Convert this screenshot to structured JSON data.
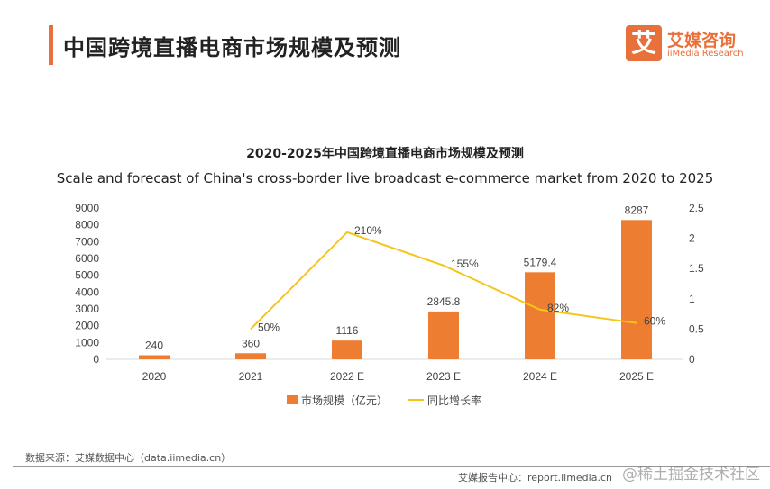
{
  "header": {
    "title": "中国跨境直播电商市场规模及预测",
    "logo_mark": "艾",
    "logo_cn": "艾媒咨询",
    "logo_en": "iiMedia Research"
  },
  "colors": {
    "accent": "#e8703a",
    "bar": "#ed7d31",
    "line": "#f5c518"
  },
  "chart_data": {
    "type": "bar+line",
    "title": "2020-2025年中国跨境直播电商市场规模及预测",
    "subtitle": "Scale and forecast of China's cross-border live broadcast e-commerce market from 2020 to 2025",
    "categories": [
      "2020",
      "2021",
      "2022 E",
      "2023 E",
      "2024 E",
      "2025 E"
    ],
    "series": [
      {
        "name": "市场规模（亿元）",
        "type": "bar",
        "axis": "left",
        "values": [
          240,
          360,
          1116,
          2845.8,
          5179.4,
          8287
        ],
        "labels": [
          "240",
          "360",
          "1116",
          "2845.8",
          "5179.4",
          "8287"
        ]
      },
      {
        "name": "同比增长率",
        "type": "line",
        "axis": "right",
        "values": [
          null,
          0.5,
          2.1,
          1.55,
          0.82,
          0.6
        ],
        "labels": [
          "",
          "50%",
          "210%",
          "155%",
          "82%",
          "60%"
        ]
      }
    ],
    "y_left": {
      "min": 0,
      "max": 9000,
      "ticks": [
        "0",
        "1000",
        "2000",
        "3000",
        "4000",
        "5000",
        "6000",
        "7000",
        "8000",
        "9000"
      ]
    },
    "y_right": {
      "min": 0,
      "max": 2.5,
      "ticks": [
        "0",
        "0.5",
        "1",
        "1.5",
        "2",
        "2.5"
      ]
    },
    "legend_position": "bottom",
    "grid": false
  },
  "footer": {
    "source": "数据来源：艾媒数据中心（data.iimedia.cn）",
    "report": "艾媒报告中心：report.iimedia.cn",
    "watermark": "@稀土掘金技术社区"
  }
}
